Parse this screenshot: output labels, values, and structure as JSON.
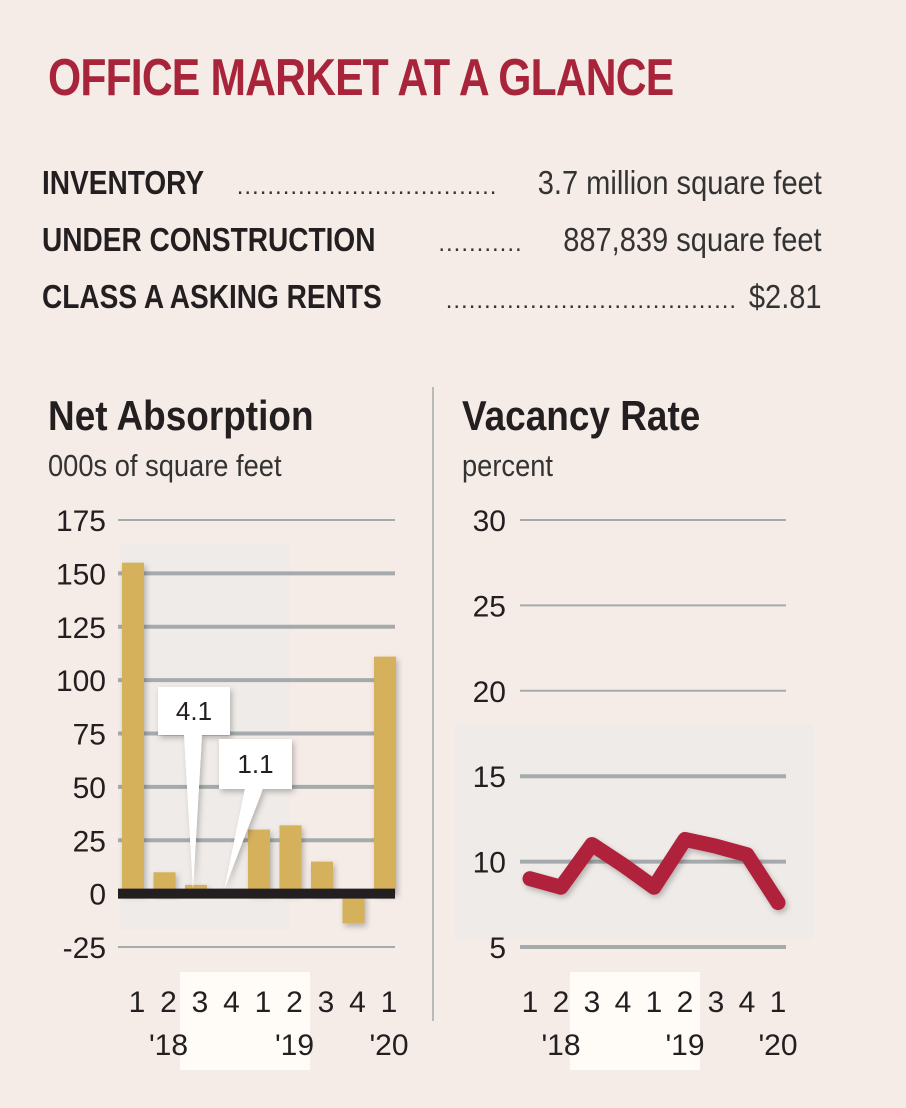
{
  "header": {
    "title": "OFFICE MARKET AT A GLANCE"
  },
  "stats": [
    {
      "label": "INVENTORY",
      "value": "3.7 million square feet"
    },
    {
      "label": "UNDER CONSTRUCTION",
      "value": "887,839 square feet"
    },
    {
      "label": "CLASS A ASKING RENTS",
      "value": "$2.81"
    }
  ],
  "colors": {
    "title": "#a8243a",
    "bar": "#d6b15c",
    "line": "#b0233a",
    "grid": "#a5abad",
    "background": "#f5ebe7"
  },
  "chart_data": [
    {
      "type": "bar",
      "title": "Net Absorption",
      "subtitle": "000s of square feet",
      "ylabel": "000s of square feet",
      "xlabel": "",
      "categories": [
        "1",
        "2",
        "3",
        "4",
        "1",
        "2",
        "3",
        "4",
        "1"
      ],
      "year_labels": [
        {
          "label": "'18",
          "category_index": 1
        },
        {
          "label": "'19",
          "category_index": 5
        },
        {
          "label": "'20",
          "category_index": 8
        }
      ],
      "values": [
        155,
        10,
        4.1,
        1.1,
        30,
        32,
        15,
        -14,
        111
      ],
      "annotations": [
        {
          "category_index": 2,
          "text": "4.1"
        },
        {
          "category_index": 3,
          "text": "1.1"
        }
      ],
      "yticks": [
        175,
        150,
        125,
        100,
        75,
        50,
        25,
        0,
        -25
      ],
      "ylim": [
        -25,
        175
      ],
      "grid": true
    },
    {
      "type": "line",
      "title": "Vacancy Rate",
      "subtitle": "percent",
      "ylabel": "percent",
      "xlabel": "",
      "categories": [
        "1",
        "2",
        "3",
        "4",
        "1",
        "2",
        "3",
        "4",
        "1"
      ],
      "year_labels": [
        {
          "label": "'18",
          "category_index": 1
        },
        {
          "label": "'19",
          "category_index": 5
        },
        {
          "label": "'20",
          "category_index": 8
        }
      ],
      "values": [
        9.0,
        8.5,
        11.0,
        9.8,
        8.5,
        11.3,
        10.9,
        10.4,
        7.6
      ],
      "yticks": [
        30,
        25,
        20,
        15,
        10,
        5
      ],
      "ylim": [
        5,
        30
      ],
      "grid": true
    }
  ]
}
